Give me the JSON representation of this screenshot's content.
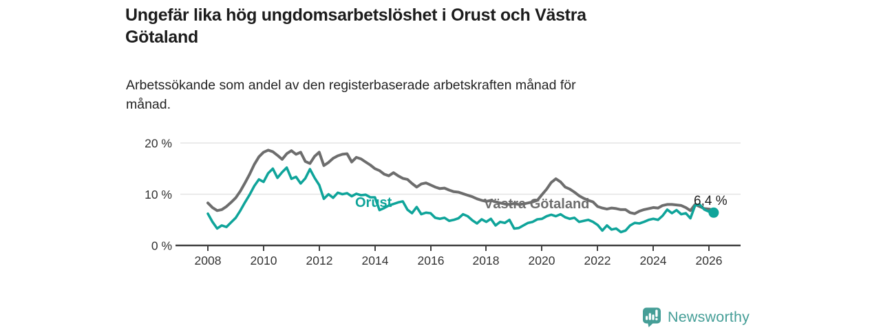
{
  "header": {
    "title_lines": [
      "Ungefär lika hög ungdomsarbetslöshet i Orust och Västra",
      "Götaland"
    ],
    "subtitle_lines": [
      "Arbetssökande som andel av den registerbaserade arbetskraften månad för",
      "månad."
    ]
  },
  "chart_data": {
    "type": "line",
    "title": "Ungefär lika hög ungdomsarbetslöshet i Orust och Västra Götaland",
    "subtitle": "Arbetssökande som andel av den registerbaserade arbetskraften månad för månad.",
    "unit": "%",
    "x_start": 2008.0,
    "x_step_years": 0.16667,
    "x_axis": {
      "tick_labels": [
        "2008",
        "2010",
        "2012",
        "2014",
        "2016",
        "2018",
        "2020",
        "2022",
        "2024",
        "2026"
      ],
      "range": [
        2007.9,
        2027.1
      ]
    },
    "y_axis": {
      "ticks": [
        0,
        10,
        20
      ],
      "tick_labels": [
        "0 %",
        "10 %",
        "20 %"
      ],
      "range": [
        0,
        21
      ],
      "grid": true
    },
    "legend_position": "inline-labels",
    "series": [
      {
        "name": "Västra Götaland",
        "color": "#6d6d6d",
        "values": [
          8.3,
          7.4,
          6.8,
          7.0,
          7.6,
          8.4,
          9.3,
          10.6,
          12.2,
          13.9,
          15.8,
          17.3,
          18.2,
          18.6,
          18.3,
          17.6,
          16.8,
          17.9,
          18.5,
          17.8,
          18.2,
          16.4,
          16.0,
          17.4,
          18.2,
          15.6,
          16.2,
          17.0,
          17.5,
          17.8,
          17.9,
          16.3,
          17.2,
          16.9,
          16.3,
          15.7,
          15.0,
          14.6,
          13.9,
          13.6,
          14.2,
          13.6,
          13.1,
          12.9,
          12.1,
          11.4,
          12.0,
          12.2,
          11.8,
          11.4,
          11.1,
          11.2,
          10.8,
          10.5,
          10.4,
          10.1,
          9.8,
          9.5,
          9.1,
          8.8,
          8.6,
          8.8,
          8.5,
          8.3,
          8.1,
          8.0,
          8.2,
          8.0,
          8.1,
          8.3,
          8.5,
          8.8,
          9.9,
          11.0,
          12.3,
          13.0,
          12.4,
          11.4,
          11.0,
          10.4,
          9.7,
          9.2,
          8.8,
          8.5,
          7.6,
          7.3,
          7.1,
          7.3,
          7.2,
          7.0,
          7.0,
          6.4,
          6.2,
          6.7,
          7.0,
          7.2,
          7.4,
          7.3,
          7.8,
          8.0,
          8.0,
          7.9,
          7.8,
          7.4,
          6.8,
          8.0,
          7.6,
          7.2,
          7.1,
          6.9
        ]
      },
      {
        "name": "Orust",
        "color": "#0fa49a",
        "values": [
          6.2,
          4.6,
          3.3,
          3.9,
          3.6,
          4.5,
          5.4,
          6.8,
          8.4,
          9.9,
          11.6,
          12.9,
          12.4,
          14.1,
          15.0,
          13.2,
          14.3,
          15.2,
          13.0,
          13.4,
          12.1,
          13.1,
          14.9,
          13.2,
          11.8,
          9.1,
          10.0,
          9.3,
          10.3,
          10.0,
          10.2,
          9.6,
          10.1,
          9.8,
          9.9,
          9.4,
          9.4,
          6.9,
          7.3,
          7.8,
          8.1,
          8.4,
          8.6,
          7.0,
          6.3,
          7.5,
          6.1,
          6.4,
          6.3,
          5.4,
          5.2,
          5.4,
          4.8,
          5.0,
          5.3,
          6.1,
          5.7,
          4.9,
          4.3,
          5.1,
          4.6,
          5.2,
          3.9,
          4.6,
          4.4,
          5.0,
          3.3,
          3.4,
          3.9,
          4.4,
          4.6,
          5.1,
          5.2,
          5.7,
          6.0,
          5.7,
          6.1,
          5.5,
          5.2,
          5.4,
          4.6,
          4.8,
          5.0,
          4.6,
          4.0,
          2.9,
          3.9,
          3.1,
          3.3,
          2.6,
          2.9,
          3.9,
          4.4,
          4.3,
          4.6,
          5.0,
          5.2,
          5.0,
          5.8,
          7.0,
          6.3,
          6.9,
          6.1,
          6.3,
          5.3,
          7.8,
          8.0,
          7.0,
          6.6,
          6.4
        ]
      }
    ],
    "end_label": {
      "text": "6,4 %",
      "series": "Orust",
      "value": 6.4
    },
    "annotations": [
      {
        "text": "Orust",
        "color": "#0fa49a"
      },
      {
        "text": "Västra Götaland",
        "color": "#6d6d6d"
      }
    ]
  },
  "footer": {
    "logo_text": "Newsworthy",
    "logo_color": "#459e97"
  },
  "colors": {
    "orust": "#0fa49a",
    "vastra_gotaland": "#6d6d6d",
    "grid": "#e4e4e4",
    "axis": "#3f3f3f",
    "tick_text": "#333333"
  }
}
